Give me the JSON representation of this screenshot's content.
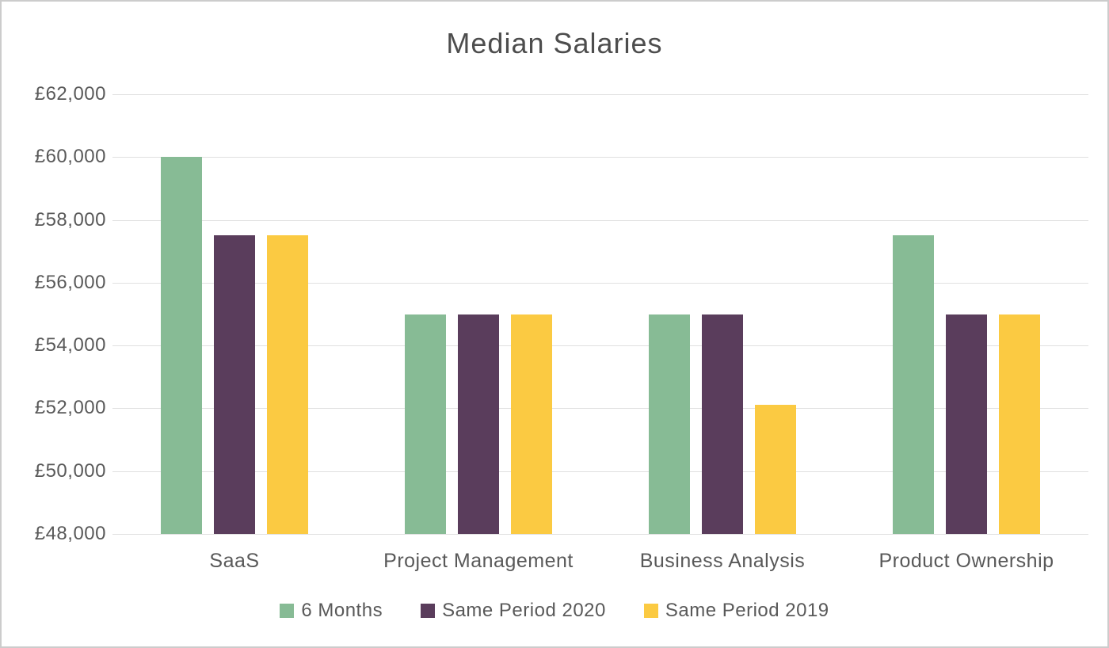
{
  "chart_data": {
    "type": "bar",
    "title": "Median Salaries",
    "categories": [
      "SaaS",
      "Project Management",
      "Business Analysis",
      "Product Ownership"
    ],
    "series": [
      {
        "name": "6 Months",
        "color": "#87BB95",
        "values": [
          60000,
          55000,
          55000,
          57500
        ]
      },
      {
        "name": "Same Period 2020",
        "color": "#5A3D5C",
        "values": [
          57500,
          55000,
          55000,
          55000
        ]
      },
      {
        "name": "Same Period 2019",
        "color": "#FBCA42",
        "values": [
          57500,
          55000,
          52100,
          55000
        ]
      }
    ],
    "ylim": [
      48000,
      62000
    ],
    "yticks": [
      62000,
      60000,
      58000,
      56000,
      54000,
      52000,
      50000,
      48000
    ],
    "ytick_labels": [
      "£62,000",
      "£60,000",
      "£58,000",
      "£56,000",
      "£54,000",
      "£52,000",
      "£50,000",
      "£48,000"
    ],
    "grid": true,
    "legend_position": "bottom",
    "colors": {
      "text": "#595959",
      "gridline": "#e0e0e0",
      "background": "#ffffff"
    }
  }
}
